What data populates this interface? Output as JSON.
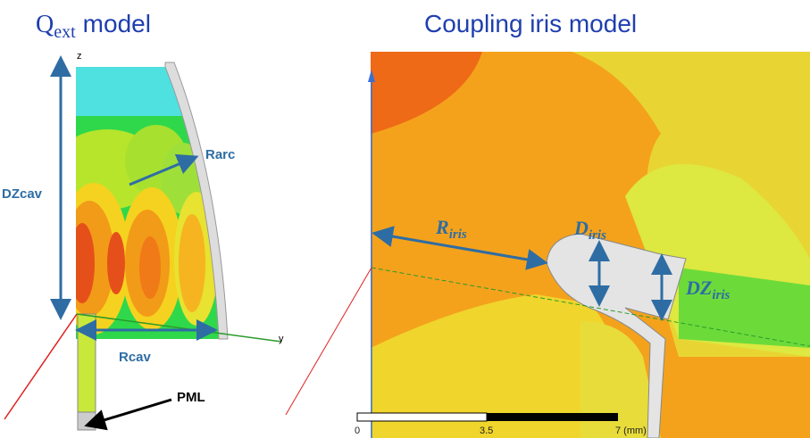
{
  "titles": {
    "qext": {
      "symbol": "Q",
      "subscript": "ext",
      "text": "model"
    },
    "coupling": "Coupling iris model"
  },
  "left_labels": {
    "dzcav": "DZcav",
    "rarc": "Rarc",
    "rcav": "Rcav",
    "pml": "PML",
    "axis_z": "z",
    "axis_y": "y"
  },
  "right_labels": {
    "r_iris": {
      "symbol": "R",
      "subscript": "iris"
    },
    "d_iris": {
      "symbol": "D",
      "subscript": "iris"
    },
    "dz_iris": {
      "symbol": "DZ",
      "subscript": "iris"
    }
  },
  "scale": {
    "ticks": [
      "0",
      "3.5",
      "7 (mm)"
    ]
  }
}
